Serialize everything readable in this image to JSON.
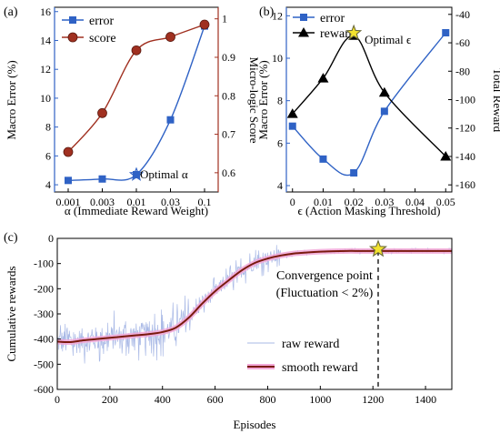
{
  "chart_data": [
    {
      "panel_label": "(a)",
      "type": "line",
      "xlabel": "α  (Immediate Reward Weight)",
      "x_ticks": [
        "0.001",
        "0.003",
        "0.01",
        "0.03",
        "0.1"
      ],
      "ylabel_left": "Macro Error (%)",
      "ylabel_right": "Micro-logic Score",
      "ylim_left": [
        3.5,
        16.3
      ],
      "y_ticks_left": [
        4,
        6,
        8,
        10,
        12,
        14,
        16
      ],
      "ylim_right": [
        0.55,
        1.03
      ],
      "y_ticks_right": [
        0.6,
        0.7,
        0.8,
        0.9,
        1.0
      ],
      "series": [
        {
          "name": "error",
          "axis": "left",
          "color": "#2f62c5",
          "marker": "square",
          "values": [
            4.3,
            4.4,
            4.7,
            8.5,
            15.0
          ]
        },
        {
          "name": "score",
          "axis": "right",
          "color": "#a03020",
          "marker": "circle",
          "values": [
            0.654,
            0.755,
            0.918,
            0.953,
            0.985
          ]
        }
      ],
      "annotation": {
        "text": "Optimal α",
        "x_index": 2,
        "y": 4.7,
        "axis": "left"
      },
      "legend": "top-left"
    },
    {
      "panel_label": "(b)",
      "type": "line",
      "xlabel": "ϵ  (Action Masking Threshold)",
      "x": [
        0,
        0.01,
        0.02,
        0.03,
        0.05
      ],
      "x_ticks": [
        0,
        0.01,
        0.02,
        0.03,
        0.04,
        0.05
      ],
      "xlim": [
        -0.002,
        0.052
      ],
      "ylabel_left": "Macro Error (%)",
      "ylabel_right": "Total Reward",
      "ylim_left": [
        3.7,
        12.4
      ],
      "y_ticks_left": [
        4,
        6,
        8,
        10,
        12
      ],
      "ylim_right": [
        -165,
        -35
      ],
      "y_ticks_right": [
        -160,
        -140,
        -120,
        -100,
        -80,
        -60,
        -40
      ],
      "series": [
        {
          "name": "error",
          "axis": "left",
          "color": "#2f62c5",
          "marker": "square",
          "values": [
            6.8,
            5.25,
            4.6,
            7.5,
            11.2
          ]
        },
        {
          "name": "reward",
          "axis": "right",
          "color": "#000000",
          "marker": "triangle",
          "values": [
            -110,
            -85,
            -55,
            -95,
            -140
          ]
        }
      ],
      "annotation": {
        "text": "Optimal ϵ",
        "x": 0.02,
        "y": -55,
        "axis": "right"
      },
      "legend": "top-left"
    },
    {
      "panel_label": "(c)",
      "type": "line",
      "xlabel": "Episodes",
      "ylabel": "Cumulative rewards",
      "xlim": [
        0,
        1500
      ],
      "x_ticks": [
        0,
        200,
        400,
        600,
        800,
        1000,
        1200,
        1400
      ],
      "ylim": [
        -600,
        0
      ],
      "y_ticks": [
        0,
        -100,
        -200,
        -300,
        -400,
        -500,
        -600
      ],
      "series": [
        {
          "name": "raw reward",
          "color": "#a9b9e6",
          "style": "noisy"
        },
        {
          "name": "smooth reward",
          "color": "#7a1a0e",
          "halo_color": "#f2a8d8",
          "x": [
            0,
            50,
            100,
            150,
            200,
            250,
            300,
            350,
            400,
            450,
            500,
            550,
            600,
            650,
            700,
            750,
            800,
            850,
            900,
            950,
            1000,
            1050,
            1100,
            1150,
            1200,
            1250,
            1300,
            1350,
            1400,
            1450,
            1500
          ],
          "values": [
            -410,
            -412,
            -405,
            -400,
            -395,
            -390,
            -385,
            -380,
            -372,
            -355,
            -315,
            -260,
            -210,
            -168,
            -128,
            -98,
            -80,
            -68,
            -60,
            -56,
            -53,
            -51,
            -50,
            -50,
            -50,
            -50,
            -50,
            -50,
            -50,
            -50,
            -50
          ]
        }
      ],
      "convergence_x": 1220,
      "convergence_y": -50,
      "annotation": {
        "line1": "Convergence point",
        "line2": "(Fluctuation < 2%)"
      },
      "legend": "bottom-center"
    }
  ]
}
